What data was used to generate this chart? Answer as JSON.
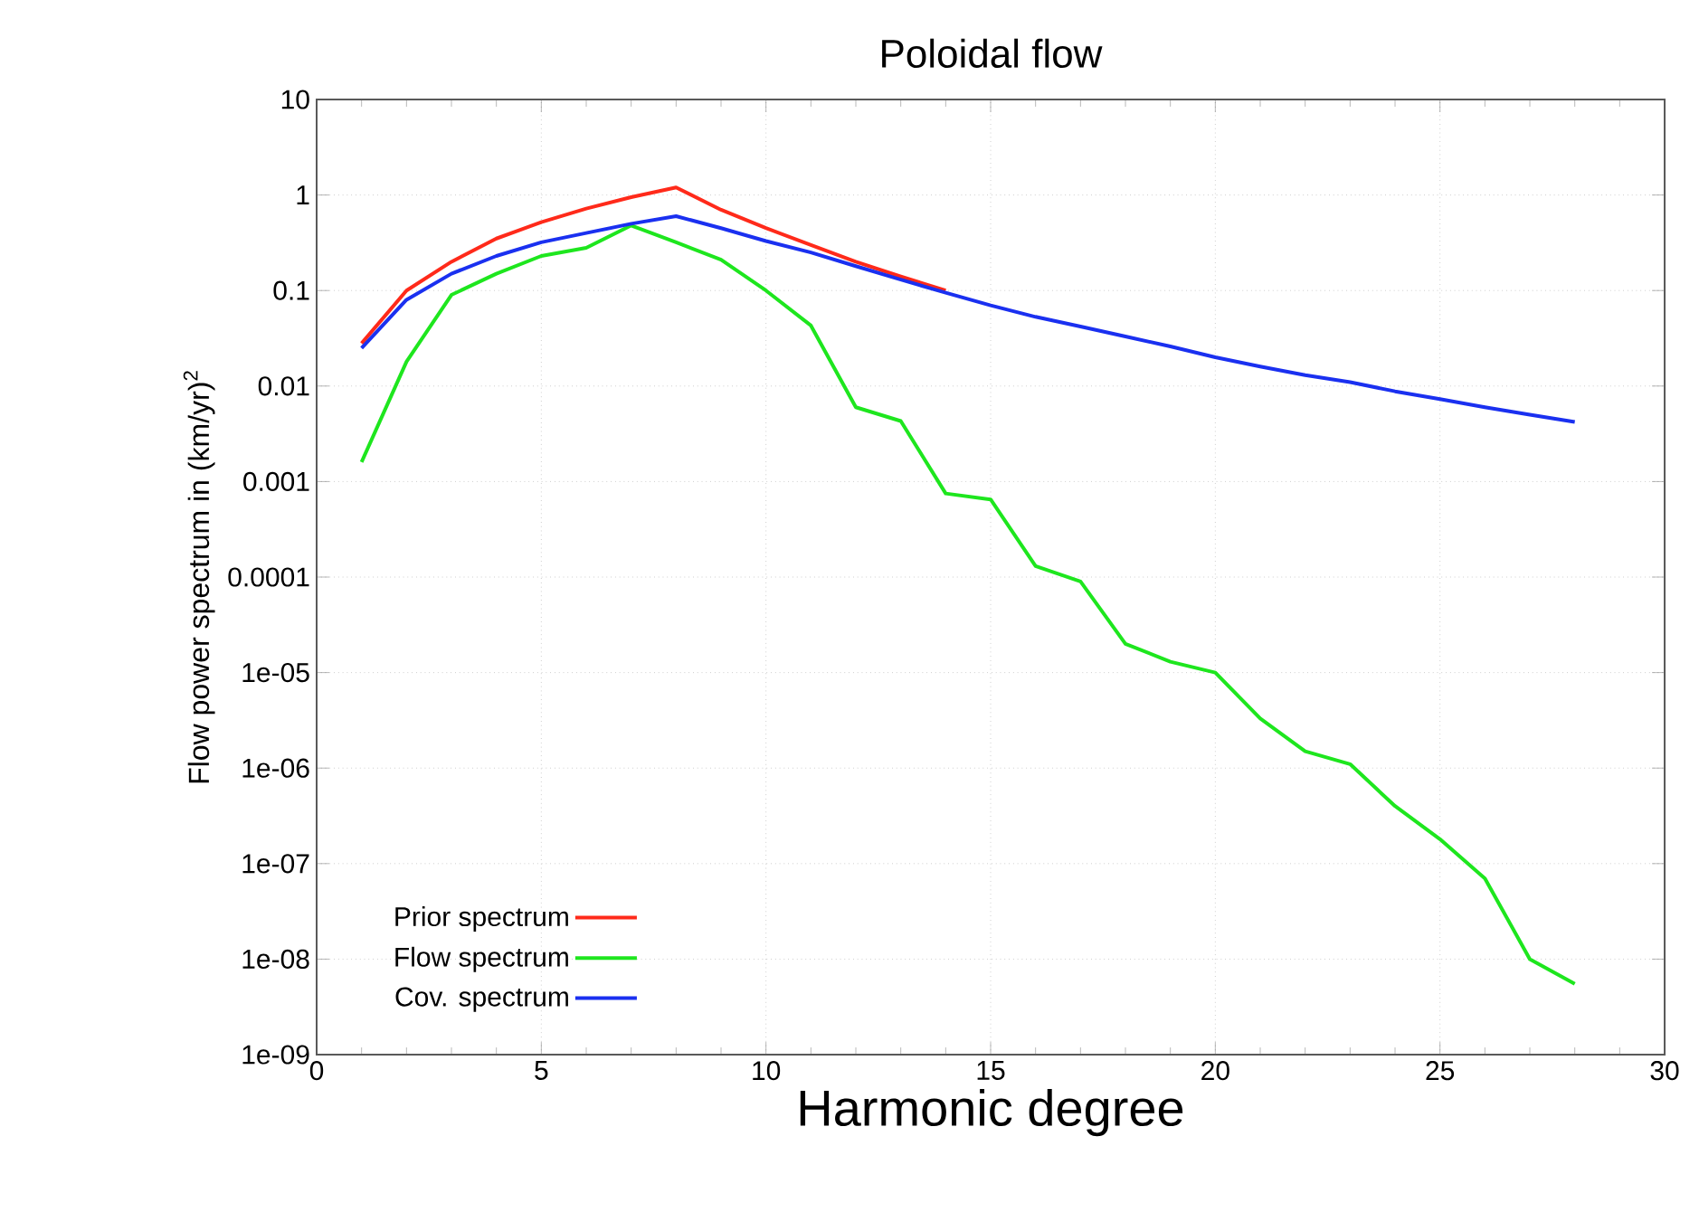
{
  "chart_data": {
    "type": "line",
    "title": "Poloidal flow",
    "xlabel": "Harmonic degree",
    "ylabel": "Flow power spectrum in (km/yr)$^{2}$",
    "x": [
      1,
      2,
      3,
      4,
      5,
      6,
      7,
      8,
      9,
      10,
      11,
      12,
      13,
      14,
      15,
      16,
      17,
      18,
      19,
      20,
      21,
      22,
      23,
      24,
      25,
      26,
      27,
      28
    ],
    "series": [
      {
        "name": "Prior spectrum",
        "color": "#ff2a1a",
        "values": [
          0.028,
          0.1,
          0.2,
          0.35,
          0.52,
          0.72,
          0.95,
          1.2,
          0.7,
          0.45,
          0.3,
          0.2,
          0.14,
          0.1,
          null,
          null,
          null,
          null,
          null,
          null,
          null,
          null,
          null,
          null,
          null,
          null,
          null,
          null
        ]
      },
      {
        "name": "Flow spectrum",
        "color": "#1ee61e",
        "values": [
          0.0016,
          0.018,
          0.09,
          0.15,
          0.23,
          0.28,
          0.48,
          0.32,
          0.21,
          0.1,
          0.043,
          0.006,
          0.0043,
          0.00075,
          0.00065,
          0.00013,
          9e-05,
          2e-05,
          1.3e-05,
          1e-05,
          3.3e-06,
          1.5e-06,
          1.1e-06,
          4e-07,
          1.8e-07,
          7e-08,
          1e-08,
          5.5e-09
        ]
      },
      {
        "name": "Cov. spectrum",
        "color": "#1a30f0",
        "values": [
          0.025,
          0.08,
          0.15,
          0.23,
          0.32,
          0.4,
          0.5,
          0.6,
          0.45,
          0.33,
          0.25,
          0.18,
          0.13,
          0.095,
          0.07,
          0.053,
          0.042,
          0.033,
          0.026,
          0.02,
          0.016,
          0.013,
          0.011,
          0.0088,
          0.0073,
          0.006,
          0.005,
          0.0042
        ]
      }
    ],
    "log": "y",
    "grid": true,
    "legend": "bottom left",
    "marker": "none",
    "line_style": "solid",
    "xlim": [
      0,
      30
    ],
    "xticks": [
      0,
      5,
      10,
      15,
      20,
      25,
      30
    ],
    "ylim": [
      1e-09,
      10
    ],
    "yticks": [
      {
        "value": 1e-09,
        "label": "1e-09"
      },
      {
        "value": 1e-08,
        "label": "1e-08"
      },
      {
        "value": 1e-07,
        "label": "1e-07"
      },
      {
        "value": 1e-06,
        "label": "1e-06"
      },
      {
        "value": 1e-05,
        "label": "1e-05"
      },
      0.0001,
      0.001,
      0.01,
      0.1,
      1,
      10
    ]
  }
}
